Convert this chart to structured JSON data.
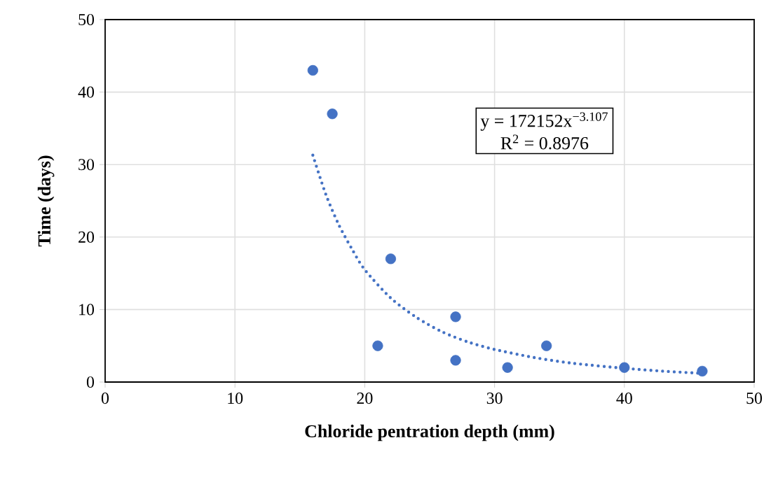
{
  "chart_data": {
    "type": "scatter",
    "xlabel": "Chloride pentration depth (mm)",
    "ylabel": "Time (days)",
    "xlim": [
      0,
      50
    ],
    "ylim": [
      0,
      50
    ],
    "xticks": [
      0,
      10,
      20,
      30,
      40,
      50
    ],
    "yticks": [
      0,
      10,
      20,
      30,
      40,
      50
    ],
    "grid": true,
    "annotations": [
      "y = 172152x$^{−3.107}$",
      "R$^{2}$ = 0.8976"
    ],
    "series": [
      {
        "color": "#4472c4",
        "marker": "circle",
        "x": [
          16,
          17.5,
          21,
          22,
          27,
          27,
          31,
          34,
          40,
          46
        ],
        "values": [
          43,
          37,
          5,
          17,
          9,
          3,
          2,
          5,
          2,
          1.5
        ]
      },
      {
        "type": "line",
        "color": "#4472c4",
        "line_style": "dotted",
        "x": [
          16,
          17,
          18,
          19,
          20,
          22,
          24,
          26,
          28,
          30,
          33,
          36,
          40,
          43,
          46
        ],
        "values": [
          31.3,
          25.9,
          21.7,
          18.4,
          15.5,
          11.6,
          8.9,
          6.9,
          5.5,
          4.5,
          3.4,
          2.6,
          1.9,
          1.5,
          1.2
        ]
      }
    ]
  }
}
